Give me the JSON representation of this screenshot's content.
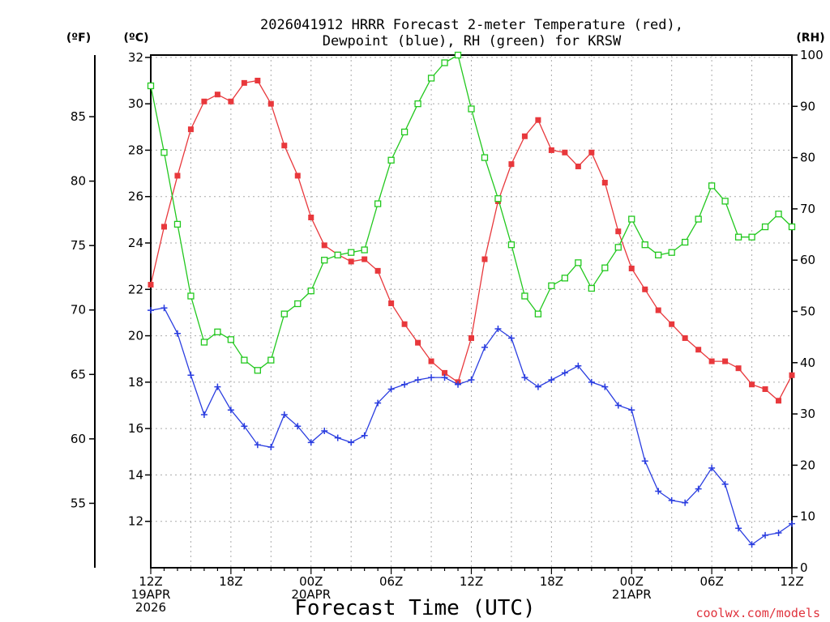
{
  "title_line1": "2026041912 HRRR Forecast 2-meter Temperature (red),",
  "title_line2": "Dewpoint (blue), RH (green) for KRSW",
  "unit_f": "(ºF)",
  "unit_c": "(ºC)",
  "unit_rh": "(RH)",
  "x_title": "Forecast Time (UTC)",
  "credit": "coolwx.com/models",
  "colors": {
    "temperature": "#e8383c",
    "dewpoint": "#2a3de0",
    "rh": "#22c81e"
  },
  "chart_data": {
    "type": "line",
    "title": "2026041912 HRRR Forecast 2-meter Temperature (red), Dewpoint (blue), RH (green) for KRSW",
    "xlabel": "Forecast Time (UTC)",
    "x": [
      0,
      1,
      2,
      3,
      4,
      5,
      6,
      7,
      8,
      9,
      10,
      11,
      12,
      13,
      14,
      15,
      16,
      17,
      18,
      19,
      20,
      21,
      22,
      23,
      24,
      25,
      26,
      27,
      28,
      29,
      30,
      31,
      32,
      33,
      34,
      35,
      36,
      37,
      38,
      39,
      40,
      41,
      42,
      43,
      44,
      45,
      46,
      47,
      48
    ],
    "x_ticks": [
      {
        "at": 0,
        "lines": [
          "12Z",
          "19APR",
          "2026"
        ]
      },
      {
        "at": 6,
        "lines": [
          "18Z"
        ]
      },
      {
        "at": 12,
        "lines": [
          "00Z",
          "20APR"
        ]
      },
      {
        "at": 18,
        "lines": [
          "06Z"
        ]
      },
      {
        "at": 24,
        "lines": [
          "12Z"
        ]
      },
      {
        "at": 30,
        "lines": [
          "18Z"
        ]
      },
      {
        "at": 36,
        "lines": [
          "00Z",
          "21APR"
        ]
      },
      {
        "at": 42,
        "lines": [
          "06Z"
        ]
      },
      {
        "at": 48,
        "lines": [
          "12Z"
        ]
      }
    ],
    "y_left_c": {
      "label": "(ºC)",
      "range": [
        10,
        32.1
      ],
      "ticks": [
        12,
        14,
        16,
        18,
        20,
        22,
        24,
        26,
        28,
        30,
        32
      ]
    },
    "y_left_f": {
      "label": "(ºF)",
      "ticks": [
        55,
        60,
        65,
        70,
        75,
        80,
        85
      ]
    },
    "y_right": {
      "label": "(RH)",
      "range": [
        0,
        100
      ],
      "ticks": [
        0,
        10,
        20,
        30,
        40,
        50,
        60,
        70,
        80,
        90,
        100
      ]
    },
    "grid": true,
    "series": [
      {
        "name": "Temperature",
        "axis": "celsius",
        "color": "#e8383c",
        "marker": "filled-square",
        "values": [
          22.2,
          24.7,
          26.9,
          28.9,
          30.1,
          30.4,
          30.1,
          30.9,
          31.0,
          30.0,
          28.2,
          26.9,
          25.1,
          23.9,
          23.5,
          23.2,
          23.3,
          22.8,
          21.4,
          20.5,
          19.7,
          18.9,
          18.4,
          18.0,
          19.9,
          23.3,
          25.8,
          27.4,
          28.6,
          29.3,
          28.0,
          27.9,
          27.3,
          27.9,
          26.6,
          24.5,
          22.9,
          22.0,
          21.1,
          20.5,
          19.9,
          19.4,
          18.9,
          18.9,
          18.6,
          17.9,
          17.7,
          17.2,
          18.3
        ]
      },
      {
        "name": "Dewpoint",
        "axis": "celsius",
        "color": "#2a3de0",
        "marker": "plus",
        "values": [
          21.1,
          21.2,
          20.1,
          18.3,
          16.6,
          17.8,
          16.8,
          16.1,
          15.3,
          15.2,
          16.6,
          16.1,
          15.4,
          15.9,
          15.6,
          15.4,
          15.7,
          17.1,
          17.7,
          17.9,
          18.1,
          18.2,
          18.2,
          17.9,
          18.1,
          19.5,
          20.3,
          19.9,
          18.2,
          17.8,
          18.1,
          18.4,
          18.7,
          18.0,
          17.8,
          17.0,
          16.8,
          14.6,
          13.3,
          12.9,
          12.8,
          13.4,
          14.3,
          13.6,
          11.7,
          11.0,
          11.4,
          11.5,
          11.9
        ]
      },
      {
        "name": "RH",
        "axis": "rh",
        "color": "#22c81e",
        "marker": "open-square",
        "values": [
          94,
          81,
          67,
          53,
          44,
          46,
          44.5,
          40.5,
          38.5,
          40.5,
          49.5,
          51.5,
          54,
          60,
          61,
          61.5,
          62,
          71,
          79.5,
          85,
          90.5,
          95.5,
          98.5,
          100,
          89.5,
          80,
          72,
          63,
          53,
          49.5,
          55,
          56.5,
          59.5,
          54.5,
          58.5,
          62.5,
          68,
          63,
          61,
          61.5,
          63.5,
          68,
          74.5,
          71.5,
          64.5,
          64.5,
          66.5,
          69,
          66.5
        ]
      }
    ]
  }
}
